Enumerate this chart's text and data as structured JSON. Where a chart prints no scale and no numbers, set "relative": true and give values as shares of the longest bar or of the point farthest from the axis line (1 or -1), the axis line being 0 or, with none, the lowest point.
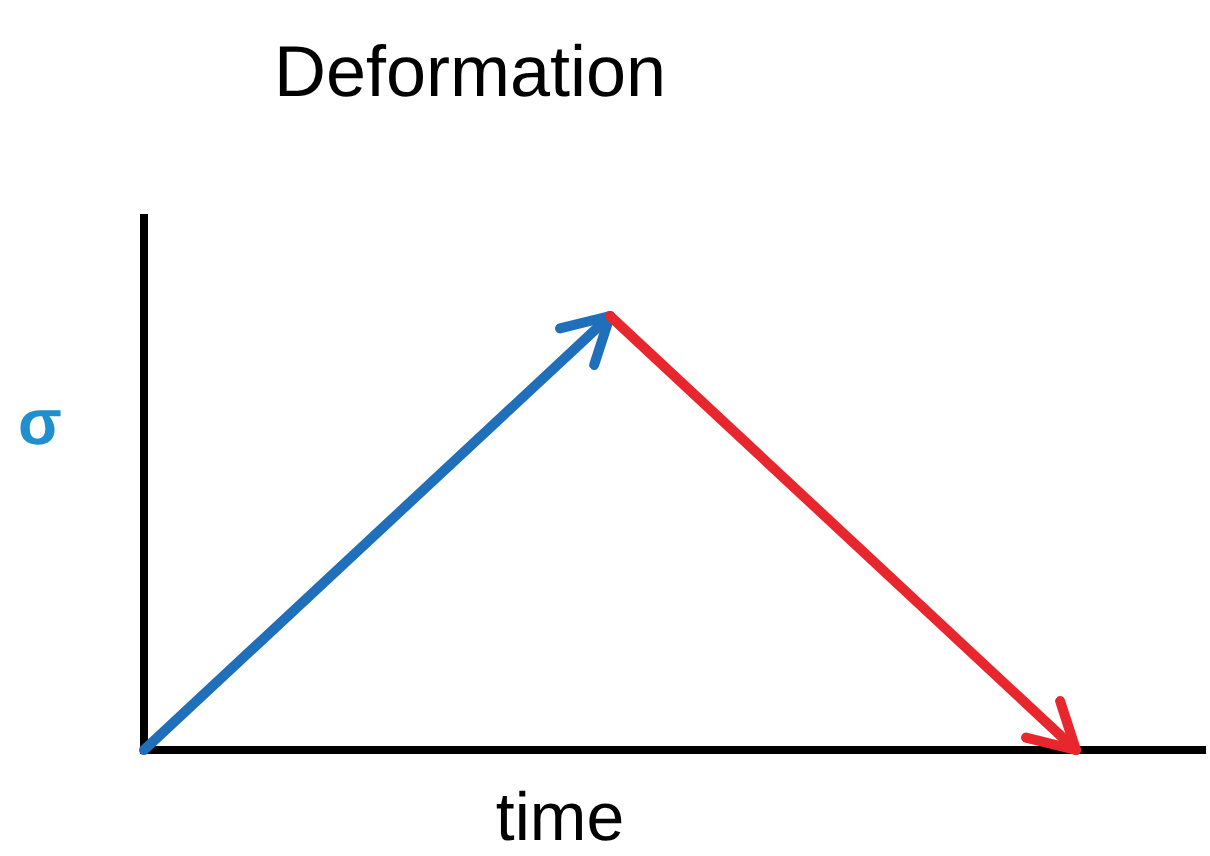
{
  "chart_data": {
    "type": "line",
    "title": "Deformation",
    "xlabel": "time",
    "ylabel": "σ",
    "relative": true,
    "categories": [
      null,
      null,
      null
    ],
    "series": [
      {
        "color": "#1f6fba",
        "values": [
          0,
          1,
          null
        ]
      },
      {
        "color": "#e8262d",
        "values": [
          null,
          1,
          0
        ]
      }
    ],
    "line_style": "solid"
  }
}
